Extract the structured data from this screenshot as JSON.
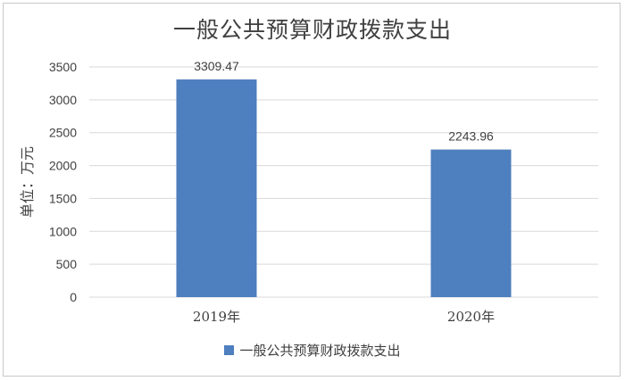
{
  "chart_data": {
    "type": "bar",
    "title": "一般公共预算财政拨款支出",
    "ylabel": "单位：万元",
    "xlabel": "",
    "categories": [
      "2019年",
      "2020年"
    ],
    "series": [
      {
        "name": "一般公共预算财政拨款支出",
        "values": [
          3309.47,
          2243.96
        ],
        "labels": [
          "3309.47",
          "2243.96"
        ]
      }
    ],
    "ylim": [
      0,
      3500
    ],
    "yticks": [
      0,
      500,
      1000,
      1500,
      2000,
      2500,
      3000,
      3500
    ],
    "grid": true,
    "legend": "bottom",
    "colors": {
      "bar": "#4e7fbe",
      "grid": "#d9d9d9",
      "text": "#404040"
    }
  }
}
